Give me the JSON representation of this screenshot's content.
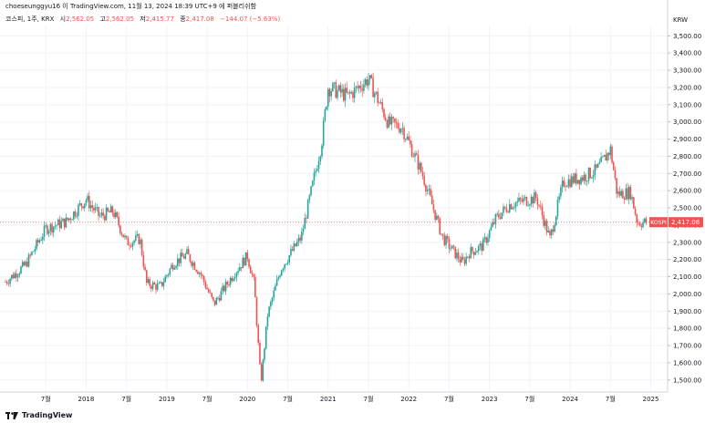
{
  "attribution": "choeseunggyu16 이 TradingView.com, 11월 13, 2024 18:39 UTC+9 에 퍼블리쉬함",
  "legend": {
    "symbol": "코스피, 1주, KRX",
    "open_label": "시",
    "open": "2,562.05",
    "high_label": "고",
    "high": "2,562.05",
    "low_label": "저",
    "low": "2,415.77",
    "close_label": "종",
    "close": "2,417.08",
    "change": "−144.07 (−5.63%)"
  },
  "footer": {
    "brand": "TradingView"
  },
  "colors": {
    "up": "#26a69a",
    "down": "#ef5350",
    "grid": "#f0f3fa",
    "text": "#131722"
  },
  "chart_data": {
    "type": "line",
    "title": "",
    "unit_label": "KRW",
    "price_badge": {
      "label": "KOSPI",
      "value": "2,417.08"
    },
    "ylim": [
      1430,
      3560
    ],
    "y_ticks": [
      "3,500.00",
      "3,400.00",
      "3,300.00",
      "3,200.00",
      "3,100.00",
      "3,000.00",
      "2,900.00",
      "2,800.00",
      "2,700.00",
      "2,600.00",
      "2,500.00",
      "2,400.00",
      "2,300.00",
      "2,200.00",
      "2,100.00",
      "2,000.00",
      "1,900.00",
      "1,800.00",
      "1,700.00",
      "1,600.00",
      "1,500.00"
    ],
    "x_ticks": [
      "7월",
      "2018",
      "7월",
      "2019",
      "7월",
      "2020",
      "7월",
      "2021",
      "7월",
      "2022",
      "7월",
      "2023",
      "7월",
      "2024",
      "7월",
      "2025"
    ],
    "x": [
      "2017-01",
      "2017-04",
      "2017-07",
      "2017-10",
      "2018-01",
      "2018-03",
      "2018-05",
      "2018-07",
      "2018-09",
      "2018-10",
      "2018-12",
      "2019-02",
      "2019-04",
      "2019-06",
      "2019-08",
      "2019-11",
      "2020-01",
      "2020-02",
      "2020-03",
      "2020-04",
      "2020-06",
      "2020-09",
      "2020-12",
      "2021-01",
      "2021-04",
      "2021-07",
      "2021-10",
      "2021-12",
      "2022-03",
      "2022-06",
      "2022-09",
      "2022-10",
      "2022-12",
      "2023-02",
      "2023-04",
      "2023-08",
      "2023-10",
      "2023-12",
      "2024-03",
      "2024-05",
      "2024-07",
      "2024-08",
      "2024-10",
      "2024-11"
    ],
    "values": [
      2070,
      2170,
      2380,
      2420,
      2550,
      2450,
      2480,
      2300,
      2320,
      2060,
      2040,
      2180,
      2230,
      2120,
      1940,
      2120,
      2220,
      2060,
      1480,
      1880,
      2150,
      2330,
      2870,
      3200,
      3150,
      3250,
      2990,
      2970,
      2700,
      2330,
      2180,
      2240,
      2280,
      2440,
      2520,
      2560,
      2320,
      2650,
      2680,
      2720,
      2840,
      2580,
      2590,
      2417
    ]
  }
}
